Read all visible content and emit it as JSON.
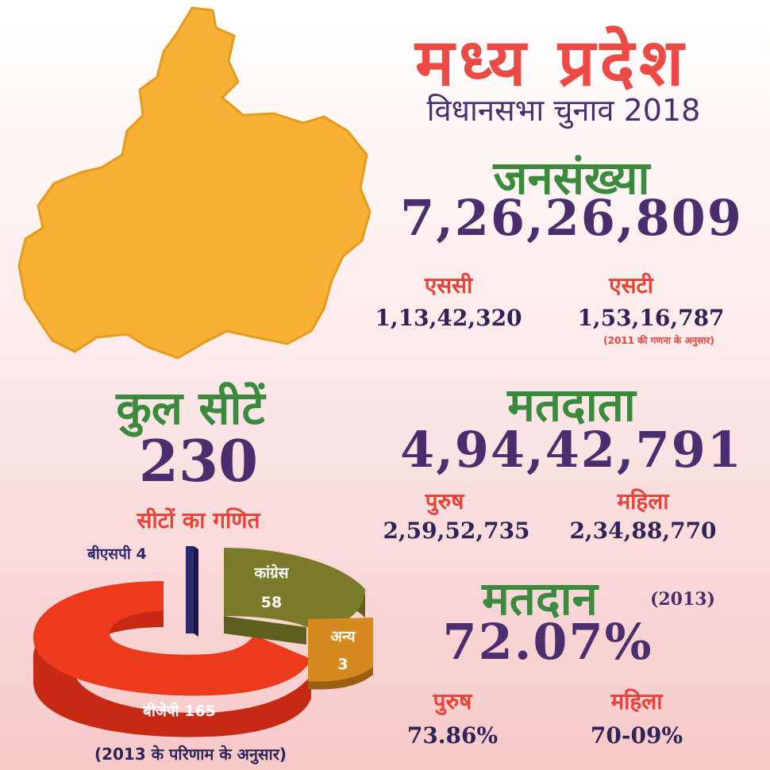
{
  "header": {
    "title": "मध्य प्रदेश",
    "subtitle": "विधानसभा चुनाव 2018"
  },
  "population": {
    "heading": "जनसंख्या",
    "total": "7,26,26,809",
    "sc_label": "एससी",
    "sc_value": "1,13,42,320",
    "st_label": "एसटी",
    "st_value": "1,53,16,787",
    "note": "(2011 की गणना के अनुसार)"
  },
  "seats": {
    "heading": "कुल सीटें",
    "total": "230",
    "math_heading": "सीटों का गणित",
    "footer_note": "(2013 के परिणाम के अनुसार)"
  },
  "voters": {
    "heading": "मतदाता",
    "total": "4,94,42,791",
    "male_label": "पुरुष",
    "male_value": "2,59,52,735",
    "female_label": "महिला",
    "female_value": "2,34,88,770"
  },
  "turnout": {
    "heading": "मतदान",
    "year": "(2013)",
    "total": "72.07%",
    "male_label": "पुरुष",
    "male_value": "73.86%",
    "female_label": "महिला",
    "female_value": "70-09%"
  },
  "chart_data": {
    "type": "pie",
    "categories": [
      "बीजेपी",
      "कांग्रेस",
      "अन्य",
      "बीएसपी"
    ],
    "values": [
      165,
      58,
      3,
      4
    ],
    "labels": {
      "bjp_name": "बीजेपी",
      "bjp_value": "165",
      "congress_name": "कांग्रेस",
      "congress_value": "58",
      "others_name": "अन्य",
      "others_value": "3",
      "bsp_name": "बीएसपी",
      "bsp_value": "4"
    },
    "colors": [
      "#e8341c",
      "#7a7a2a",
      "#d68a1e",
      "#2c2a6e"
    ]
  },
  "colors": {
    "map": "#f7b236",
    "accent_red": "#ec4a45",
    "accent_green": "#3b8a3e",
    "accent_purple": "#4b2e6e"
  }
}
